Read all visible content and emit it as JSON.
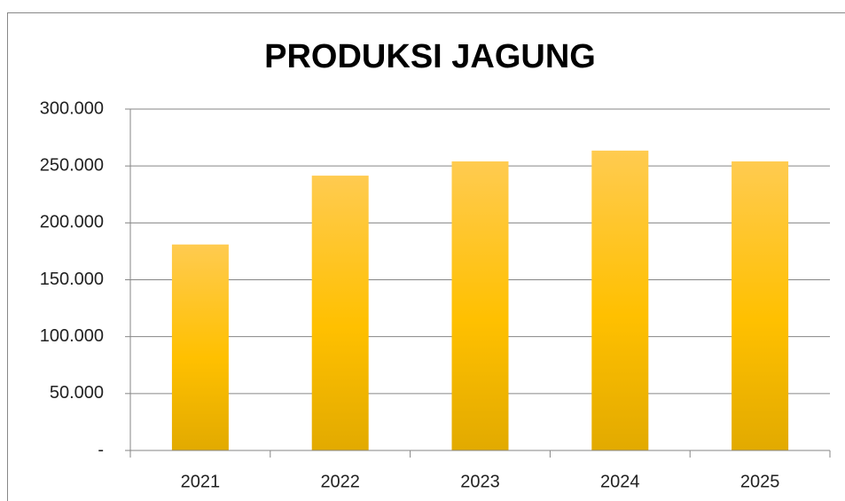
{
  "chart_data": {
    "type": "bar",
    "title": "PRODUKSI JAGUNG",
    "categories": [
      "2021",
      "2022",
      "2023",
      "2024",
      "2025"
    ],
    "values": [
      181000,
      241500,
      254000,
      263500,
      254000
    ],
    "color": "#ffc000",
    "ylim": [
      0,
      300000
    ],
    "yticks": [
      {
        "value": 0,
        "label": "-"
      },
      {
        "value": 50000,
        "label": "50.000"
      },
      {
        "value": 100000,
        "label": "100.000"
      },
      {
        "value": 150000,
        "label": "150.000"
      },
      {
        "value": 200000,
        "label": "200.000"
      },
      {
        "value": 250000,
        "label": "250.000"
      },
      {
        "value": 300000,
        "label": "300.000"
      }
    ],
    "grid": true
  }
}
